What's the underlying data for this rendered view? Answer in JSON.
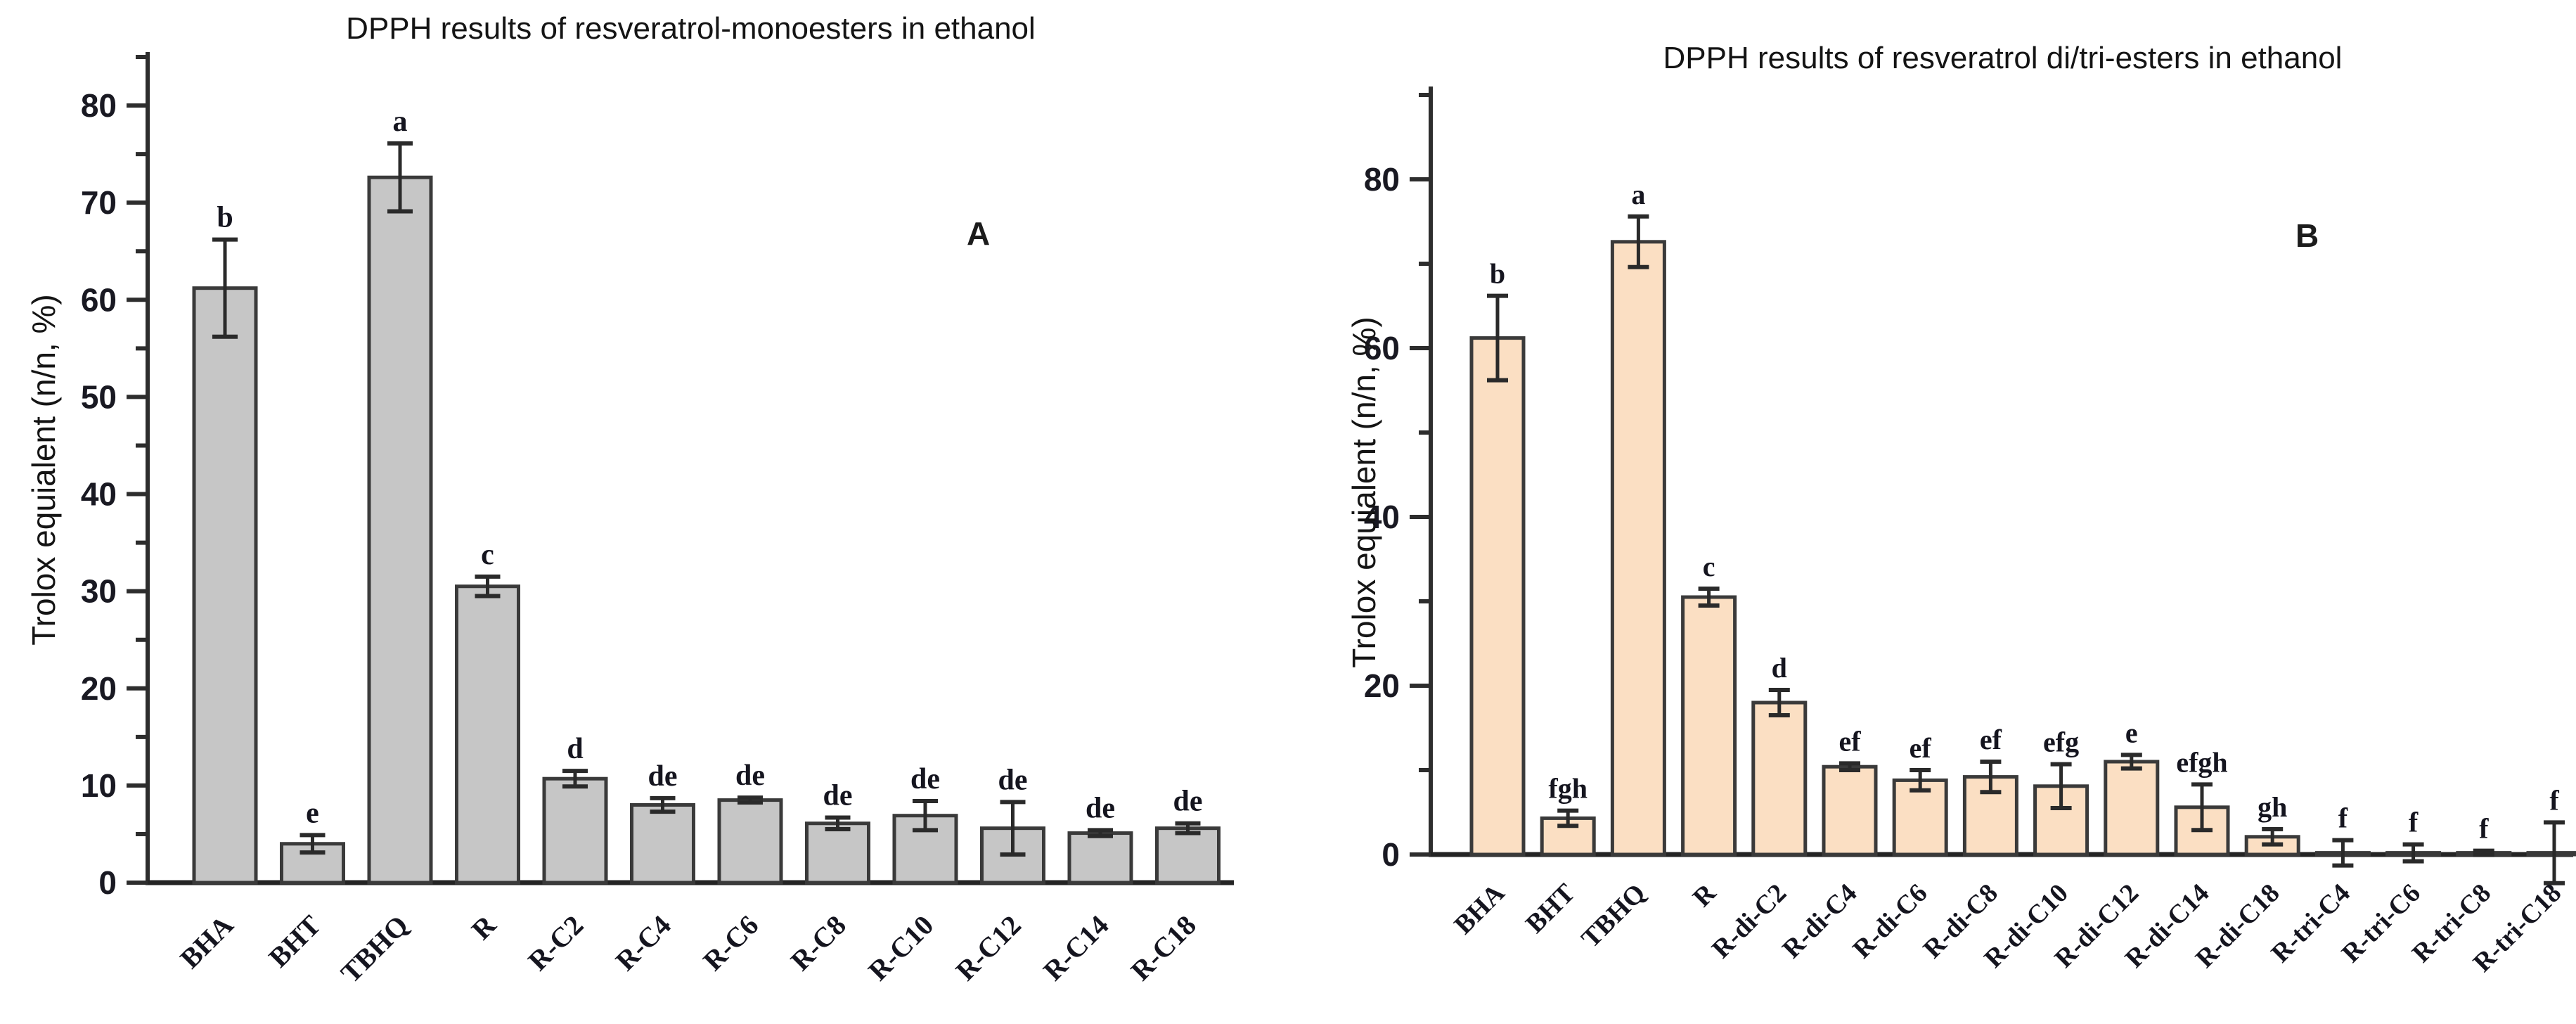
{
  "page": {
    "background": "#ffffff"
  },
  "chart_data": [
    {
      "type": "bar",
      "panel_label": "A",
      "title": "DPPH results of resveratrol-monoesters in ethanol",
      "xlabel": "",
      "ylabel": "Trolox equialent (n/n, %)",
      "ylim": [
        0,
        85
      ],
      "ytick_major_step": 10,
      "ytick_minor_step": 5,
      "ytick_labels": [
        "0",
        "10",
        "20",
        "30",
        "40",
        "50",
        "60",
        "70",
        "80"
      ],
      "grid": false,
      "legend": "none",
      "bar_fill": "#c6c6c6",
      "bar_stroke": "#3a3a3a",
      "error_color": "#2a2a2a",
      "categories": [
        "BHA",
        "BHT",
        "TBHQ",
        "R",
        "R-C2",
        "R-C4",
        "R-C6",
        "R-C8",
        "R-C10",
        "R-C12",
        "R-C14",
        "R-C18"
      ],
      "values": [
        61.2,
        4.0,
        72.6,
        30.5,
        10.7,
        8.0,
        8.5,
        6.1,
        6.9,
        5.6,
        5.1,
        5.6
      ],
      "errors": [
        5.0,
        0.9,
        3.5,
        1.0,
        0.8,
        0.7,
        0.25,
        0.6,
        1.5,
        2.7,
        0.3,
        0.5
      ],
      "sig_letters": [
        "b",
        "e",
        "a",
        "c",
        "d",
        "de",
        "de",
        "de",
        "de",
        "de",
        "de",
        "de"
      ]
    },
    {
      "type": "bar",
      "panel_label": "B",
      "title": "DPPH results of resveratrol di/tri-esters in ethanol",
      "xlabel": "",
      "ylabel": "Trolox equialent (n/n, %)",
      "ylim": [
        0,
        91
      ],
      "ytick_major_step": 20,
      "ytick_minor_step": 10,
      "ytick_labels": [
        "0",
        "20",
        "40",
        "60",
        "80"
      ],
      "grid": false,
      "legend": "none",
      "bar_fill": "#fbdfc3",
      "bar_stroke": "#3a3a3a",
      "error_color": "#2a2a2a",
      "categories": [
        "BHA",
        "BHT",
        "TBHQ",
        "R",
        "R-di-C2",
        "R-di-C4",
        "R-di-C6",
        "R-di-C8",
        "R-di-C10",
        "R-di-C12",
        "R-di-C14",
        "R-di-C18",
        "R-tri-C4",
        "R-tri-C6",
        "R-tri-C8",
        "R-tri-C18"
      ],
      "values": [
        61.2,
        4.3,
        72.6,
        30.5,
        18.0,
        10.4,
        8.8,
        9.2,
        8.1,
        11.0,
        5.6,
        2.1,
        0.2,
        0.2,
        0.2,
        0.2
      ],
      "errors": [
        5.0,
        0.9,
        3.0,
        1.0,
        1.5,
        0.4,
        1.2,
        1.8,
        2.6,
        0.8,
        2.7,
        0.9,
        1.5,
        1.0,
        0.25,
        3.6
      ],
      "sig_letters": [
        "b",
        "fgh",
        "a",
        "c",
        "d",
        "ef",
        "ef",
        "ef",
        "efg",
        "e",
        "efgh",
        "gh",
        "f",
        "f",
        "f",
        "f"
      ]
    }
  ]
}
